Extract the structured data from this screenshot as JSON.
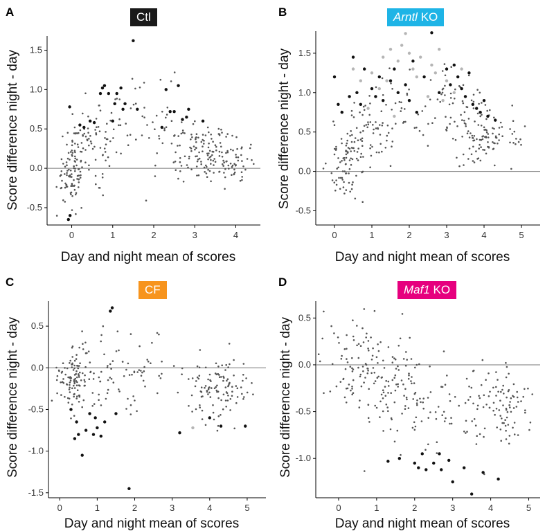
{
  "figure": {
    "panels": [
      {
        "letter": "A",
        "badge_italic": "",
        "badge_rest": "Ctl",
        "badge_color": "#1a1a1a"
      },
      {
        "letter": "B",
        "badge_italic": "Arntl",
        "badge_rest": " KO",
        "badge_color": "#1eb4e6"
      },
      {
        "letter": "C",
        "badge_italic": "",
        "badge_rest": "CF",
        "badge_color": "#f7941d"
      },
      {
        "letter": "D",
        "badge_italic": "Maf1",
        "badge_rest": " KO",
        "badge_color": "#e6007e"
      }
    ]
  },
  "chart_data": [
    {
      "type": "scatter",
      "panel": "A",
      "xlabel": "Day and night mean of scores",
      "ylabel": "Score difference  night - day",
      "xlim": [
        -0.6,
        4.6
      ],
      "ylim": [
        -0.72,
        1.68
      ],
      "xticks": [
        0,
        1,
        2,
        3,
        4
      ],
      "yticks": [
        -0.5,
        0.0,
        0.5,
        1.0,
        1.5
      ],
      "ytick_labels": [
        "-0.5",
        "0.0",
        "0.5",
        "1.0",
        "1.5"
      ],
      "reference_line_y": 0,
      "clusters": [
        {
          "cx": 0.0,
          "cy": -0.05,
          "sx": 0.18,
          "sy": 0.2,
          "n": 90
        },
        {
          "cx": 0.5,
          "cy": 0.35,
          "sx": 0.3,
          "sy": 0.22,
          "n": 70
        },
        {
          "cx": 1.3,
          "cy": 0.5,
          "sx": 0.45,
          "sy": 0.25,
          "n": 40
        },
        {
          "cx": 2.4,
          "cy": 0.45,
          "sx": 0.3,
          "sy": 0.3,
          "n": 25
        },
        {
          "cx": 3.3,
          "cy": 0.2,
          "sx": 0.45,
          "sy": 0.18,
          "n": 120
        },
        {
          "cx": 4.0,
          "cy": 0.05,
          "sx": 0.3,
          "sy": 0.12,
          "n": 40
        }
      ],
      "highlight_points": [
        [
          -0.05,
          0.78
        ],
        [
          -0.08,
          -0.65
        ],
        [
          -0.04,
          -0.6
        ],
        [
          0.3,
          0.52
        ],
        [
          0.45,
          0.6
        ],
        [
          0.55,
          0.58
        ],
        [
          0.7,
          0.95
        ],
        [
          0.75,
          1.02
        ],
        [
          0.8,
          1.05
        ],
        [
          0.9,
          0.95
        ],
        [
          1.0,
          0.6
        ],
        [
          1.05,
          0.82
        ],
        [
          1.1,
          0.95
        ],
        [
          1.2,
          1.02
        ],
        [
          1.25,
          0.75
        ],
        [
          1.3,
          0.82
        ],
        [
          1.5,
          1.62
        ],
        [
          1.6,
          0.75
        ],
        [
          2.3,
          1.0
        ],
        [
          2.4,
          0.72
        ],
        [
          2.5,
          0.72
        ],
        [
          2.6,
          1.05
        ],
        [
          2.7,
          0.62
        ],
        [
          2.8,
          0.65
        ],
        [
          2.85,
          0.75
        ],
        [
          2.2,
          0.52
        ],
        [
          0.2,
          0.55
        ],
        [
          3.2,
          0.6
        ]
      ]
    },
    {
      "type": "scatter",
      "panel": "B",
      "xlabel": "Day and night mean of scores",
      "ylabel": "Score difference  night - day",
      "xlim": [
        -0.5,
        5.5
      ],
      "ylim": [
        -0.68,
        1.78
      ],
      "xticks": [
        0,
        1,
        2,
        3,
        4,
        5
      ],
      "yticks": [
        -0.5,
        0.0,
        0.5,
        1.0,
        1.5
      ],
      "ytick_labels": [
        "-0.5",
        "0.0",
        "0.5",
        "1.0",
        "1.5"
      ],
      "reference_line_y": 0,
      "clusters": [
        {
          "cx": 0.3,
          "cy": 0.1,
          "sx": 0.25,
          "sy": 0.25,
          "n": 80
        },
        {
          "cx": 1.0,
          "cy": 0.45,
          "sx": 0.35,
          "sy": 0.25,
          "n": 60
        },
        {
          "cx": 2.0,
          "cy": 0.8,
          "sx": 0.5,
          "sy": 0.3,
          "n": 40
        },
        {
          "cx": 3.3,
          "cy": 0.9,
          "sx": 0.35,
          "sy": 0.25,
          "n": 40
        },
        {
          "cx": 4.0,
          "cy": 0.45,
          "sx": 0.45,
          "sy": 0.2,
          "n": 110
        }
      ],
      "highlight_points": [
        [
          0.0,
          1.2
        ],
        [
          0.1,
          0.85
        ],
        [
          0.2,
          0.75
        ],
        [
          0.5,
          1.45
        ],
        [
          0.6,
          1.0
        ],
        [
          0.8,
          1.3
        ],
        [
          1.0,
          1.05
        ],
        [
          1.2,
          1.2
        ],
        [
          1.3,
          0.9
        ],
        [
          1.5,
          1.15
        ],
        [
          1.7,
          1.0
        ],
        [
          1.9,
          1.1
        ],
        [
          2.0,
          0.9
        ],
        [
          2.2,
          0.75
        ],
        [
          2.4,
          1.2
        ],
        [
          2.6,
          1.76
        ],
        [
          2.8,
          1.0
        ],
        [
          3.0,
          1.3
        ],
        [
          3.1,
          1.1
        ],
        [
          3.2,
          1.35
        ],
        [
          3.3,
          1.2
        ],
        [
          3.4,
          1.05
        ],
        [
          3.5,
          0.95
        ],
        [
          3.6,
          1.25
        ],
        [
          3.7,
          0.85
        ],
        [
          3.8,
          0.8
        ],
        [
          3.9,
          0.75
        ],
        [
          4.0,
          0.9
        ],
        [
          4.1,
          0.7
        ],
        [
          4.3,
          0.65
        ],
        [
          1.1,
          0.95
        ],
        [
          2.1,
          1.4
        ],
        [
          0.4,
          0.95
        ],
        [
          0.7,
          0.85
        ],
        [
          1.6,
          1.3
        ]
      ],
      "light_points": [
        [
          0.5,
          1.3
        ],
        [
          0.7,
          1.15
        ],
        [
          1.0,
          1.25
        ],
        [
          1.3,
          1.45
        ],
        [
          1.5,
          1.55
        ],
        [
          1.6,
          0.7
        ],
        [
          1.8,
          1.6
        ],
        [
          1.9,
          1.75
        ],
        [
          2.0,
          1.5
        ],
        [
          2.1,
          1.3
        ],
        [
          2.2,
          1.2
        ],
        [
          2.3,
          1.45
        ],
        [
          2.5,
          0.95
        ],
        [
          2.7,
          1.25
        ],
        [
          2.9,
          0.9
        ],
        [
          3.0,
          1.15
        ],
        [
          3.2,
          1.0
        ],
        [
          1.2,
          1.05
        ],
        [
          0.9,
          0.8
        ],
        [
          2.6,
          1.35
        ],
        [
          3.4,
          1.3
        ],
        [
          1.4,
          1.15
        ],
        [
          1.7,
          1.4
        ],
        [
          2.8,
          1.55
        ]
      ]
    },
    {
      "type": "scatter",
      "panel": "C",
      "xlabel": "Day and night mean of scores",
      "ylabel": "Score difference  night - day",
      "xlim": [
        -0.3,
        5.5
      ],
      "ylim": [
        -1.56,
        0.8
      ],
      "xticks": [
        0,
        1,
        2,
        3,
        4,
        5
      ],
      "yticks": [
        -1.5,
        -1.0,
        -0.5,
        0.0,
        0.5
      ],
      "ytick_labels": [
        "-1.5",
        "-1.0",
        "-0.5",
        "0.0",
        "0.5"
      ],
      "reference_line_y": 0,
      "clusters": [
        {
          "cx": 0.3,
          "cy": -0.15,
          "sx": 0.2,
          "sy": 0.15,
          "n": 90
        },
        {
          "cx": 1.0,
          "cy": -0.1,
          "sx": 0.4,
          "sy": 0.3,
          "n": 60
        },
        {
          "cx": 2.2,
          "cy": -0.15,
          "sx": 0.6,
          "sy": 0.3,
          "n": 40
        },
        {
          "cx": 4.2,
          "cy": -0.25,
          "sx": 0.45,
          "sy": 0.22,
          "n": 110
        }
      ],
      "highlight_points": [
        [
          1.4,
          0.72
        ],
        [
          1.35,
          0.68
        ],
        [
          0.6,
          -1.05
        ],
        [
          1.85,
          -1.45
        ],
        [
          0.4,
          -0.85
        ],
        [
          0.5,
          -0.8
        ],
        [
          0.7,
          -0.75
        ],
        [
          0.9,
          -0.8
        ],
        [
          1.1,
          -0.82
        ],
        [
          1.2,
          -0.65
        ],
        [
          0.3,
          -0.5
        ],
        [
          0.8,
          -0.55
        ],
        [
          1.0,
          -0.72
        ],
        [
          3.2,
          -0.78
        ],
        [
          4.3,
          -0.7
        ],
        [
          4.95,
          -0.7
        ],
        [
          4.0,
          -0.6
        ],
        [
          0.95,
          -0.6
        ],
        [
          1.5,
          -0.55
        ],
        [
          0.45,
          -0.65
        ]
      ],
      "light_points": [
        [
          3.55,
          -0.72
        ]
      ]
    },
    {
      "type": "scatter",
      "panel": "D",
      "xlabel": "Day and night mean of scores",
      "ylabel": "Score difference  night - day",
      "xlim": [
        -0.6,
        5.3
      ],
      "ylim": [
        -1.42,
        0.68
      ],
      "xticks": [
        0,
        1,
        2,
        3,
        4,
        5
      ],
      "yticks": [
        -1.0,
        -0.5,
        0.0,
        0.5
      ],
      "ytick_labels": [
        "-1.0",
        "-0.5",
        "0.0",
        "0.5"
      ],
      "reference_line_y": 0,
      "clusters": [
        {
          "cx": 0.5,
          "cy": -0.05,
          "sx": 0.45,
          "sy": 0.25,
          "n": 90
        },
        {
          "cx": 1.5,
          "cy": -0.2,
          "sx": 0.45,
          "sy": 0.3,
          "n": 80
        },
        {
          "cx": 2.6,
          "cy": -0.45,
          "sx": 0.5,
          "sy": 0.3,
          "n": 50
        },
        {
          "cx": 4.2,
          "cy": -0.4,
          "sx": 0.5,
          "sy": 0.2,
          "n": 100
        }
      ],
      "highlight_points": [
        [
          1.3,
          -1.03
        ],
        [
          2.0,
          -1.05
        ],
        [
          2.1,
          -1.1
        ],
        [
          2.2,
          -0.95
        ],
        [
          2.3,
          -1.12
        ],
        [
          2.5,
          -1.05
        ],
        [
          2.7,
          -1.12
        ],
        [
          2.9,
          -1.02
        ],
        [
          3.0,
          -1.25
        ],
        [
          3.3,
          -1.1
        ],
        [
          3.5,
          -1.38
        ],
        [
          3.8,
          -1.15
        ],
        [
          4.2,
          -1.22
        ],
        [
          1.6,
          -1.0
        ],
        [
          2.65,
          -0.95
        ]
      ]
    }
  ]
}
